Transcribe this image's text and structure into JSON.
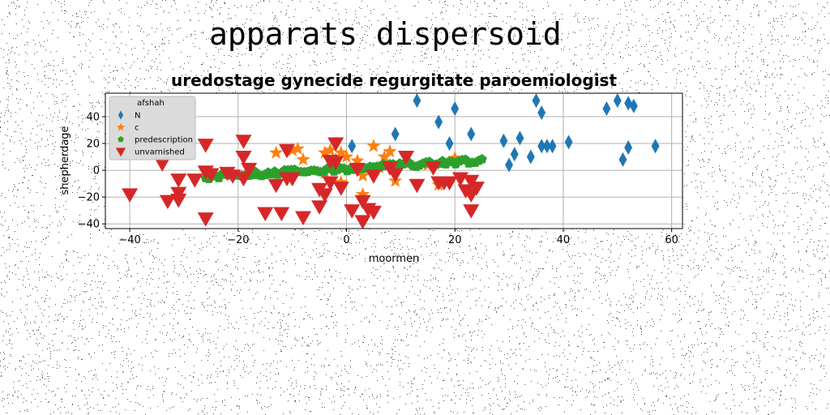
{
  "page": {
    "super_title": "apparats dispersoid"
  },
  "chart_data": {
    "type": "scatter",
    "title": "uredostage gynecide regurgitate paroemiologist",
    "xlabel": "moormen",
    "ylabel": "shepherdage",
    "xlim": [
      -44.5,
      62
    ],
    "ylim": [
      -43.5,
      57.5
    ],
    "xticks": [
      -40,
      -20,
      0,
      20,
      40,
      60
    ],
    "xtick_labels": [
      "−40",
      "−20",
      "0",
      "20",
      "40",
      "60"
    ],
    "yticks": [
      -40,
      -20,
      0,
      20,
      40
    ],
    "ytick_labels": [
      "−40",
      "−20",
      "0",
      "20",
      "40"
    ],
    "grid": true,
    "legend": {
      "title": "afshah",
      "placement": "top-left"
    },
    "series": [
      {
        "name": "N",
        "marker": "thin-diamond",
        "color": "#1f77b4",
        "points": [
          [
            1,
            18
          ],
          [
            5,
            -2
          ],
          [
            9,
            27
          ],
          [
            13,
            52
          ],
          [
            17,
            36
          ],
          [
            19,
            20
          ],
          [
            20,
            46
          ],
          [
            23,
            27
          ],
          [
            29,
            22
          ],
          [
            30,
            4
          ],
          [
            31,
            12
          ],
          [
            32,
            24
          ],
          [
            34,
            10
          ],
          [
            35,
            52
          ],
          [
            36,
            43
          ],
          [
            36,
            18
          ],
          [
            37,
            18
          ],
          [
            38,
            18
          ],
          [
            41,
            21
          ],
          [
            48,
            46
          ],
          [
            50,
            52
          ],
          [
            52,
            50
          ],
          [
            51,
            8
          ],
          [
            52,
            17
          ],
          [
            53,
            48
          ],
          [
            57,
            18
          ]
        ]
      },
      {
        "name": "c",
        "marker": "star",
        "color": "#ff7f0e",
        "points": [
          [
            -13,
            13
          ],
          [
            -10,
            15
          ],
          [
            -9,
            16
          ],
          [
            -8,
            8
          ],
          [
            -4,
            13
          ],
          [
            -3,
            15
          ],
          [
            -2,
            8
          ],
          [
            -1,
            13
          ],
          [
            0,
            10
          ],
          [
            2,
            7
          ],
          [
            3,
            -18
          ],
          [
            5,
            18
          ],
          [
            7,
            10
          ],
          [
            8,
            14
          ],
          [
            9,
            -8
          ],
          [
            11,
            5
          ],
          [
            15,
            4
          ],
          [
            17,
            -11
          ],
          [
            20,
            9
          ],
          [
            -4,
            -2
          ],
          [
            -1,
            -9
          ],
          [
            3,
            -4
          ],
          [
            6,
            2
          ]
        ]
      },
      {
        "name": "predescription",
        "marker": "pentagon",
        "color": "#2ca02c",
        "trend": {
          "x_from": -26,
          "x_to": 25,
          "y_from": -5,
          "y_to": 7,
          "count": 85,
          "spread": 3.6
        }
      },
      {
        "name": "unvarnished",
        "marker": "triangle-down",
        "color": "#d62728",
        "points": [
          [
            -40,
            -18
          ],
          [
            -34,
            5
          ],
          [
            -33,
            -23
          ],
          [
            -31,
            -17
          ],
          [
            -31,
            -22
          ],
          [
            -31,
            -7
          ],
          [
            -28,
            -7
          ],
          [
            -26,
            19
          ],
          [
            -26,
            -1
          ],
          [
            -26,
            -36
          ],
          [
            -22,
            -2
          ],
          [
            -19,
            22
          ],
          [
            -19,
            10
          ],
          [
            -19,
            -6
          ],
          [
            -18,
            1
          ],
          [
            -15,
            -32
          ],
          [
            -13,
            -11
          ],
          [
            -12,
            -32
          ],
          [
            -11,
            -6
          ],
          [
            -11,
            15
          ],
          [
            -10,
            -6
          ],
          [
            -8,
            -35
          ],
          [
            -5,
            -27
          ],
          [
            -5,
            -14
          ],
          [
            -4,
            -18
          ],
          [
            -3,
            -9
          ],
          [
            -3,
            7
          ],
          [
            -2,
            20
          ],
          [
            -2,
            6
          ],
          [
            -1,
            -13
          ],
          [
            1,
            -30
          ],
          [
            2,
            1
          ],
          [
            3,
            -23
          ],
          [
            3,
            -38
          ],
          [
            4,
            -29
          ],
          [
            5,
            -31
          ],
          [
            8,
            2
          ],
          [
            11,
            10
          ],
          [
            13,
            -11
          ],
          [
            16,
            2
          ],
          [
            17,
            -9
          ],
          [
            18,
            -9
          ],
          [
            19,
            -9
          ],
          [
            21,
            -6
          ],
          [
            22,
            -15
          ],
          [
            23,
            -8
          ],
          [
            23,
            -18
          ],
          [
            23,
            -30
          ],
          [
            24,
            -13
          ],
          [
            5,
            -4
          ],
          [
            9,
            -3
          ],
          [
            -25,
            -3
          ],
          [
            -21,
            -4
          ]
        ]
      }
    ]
  }
}
